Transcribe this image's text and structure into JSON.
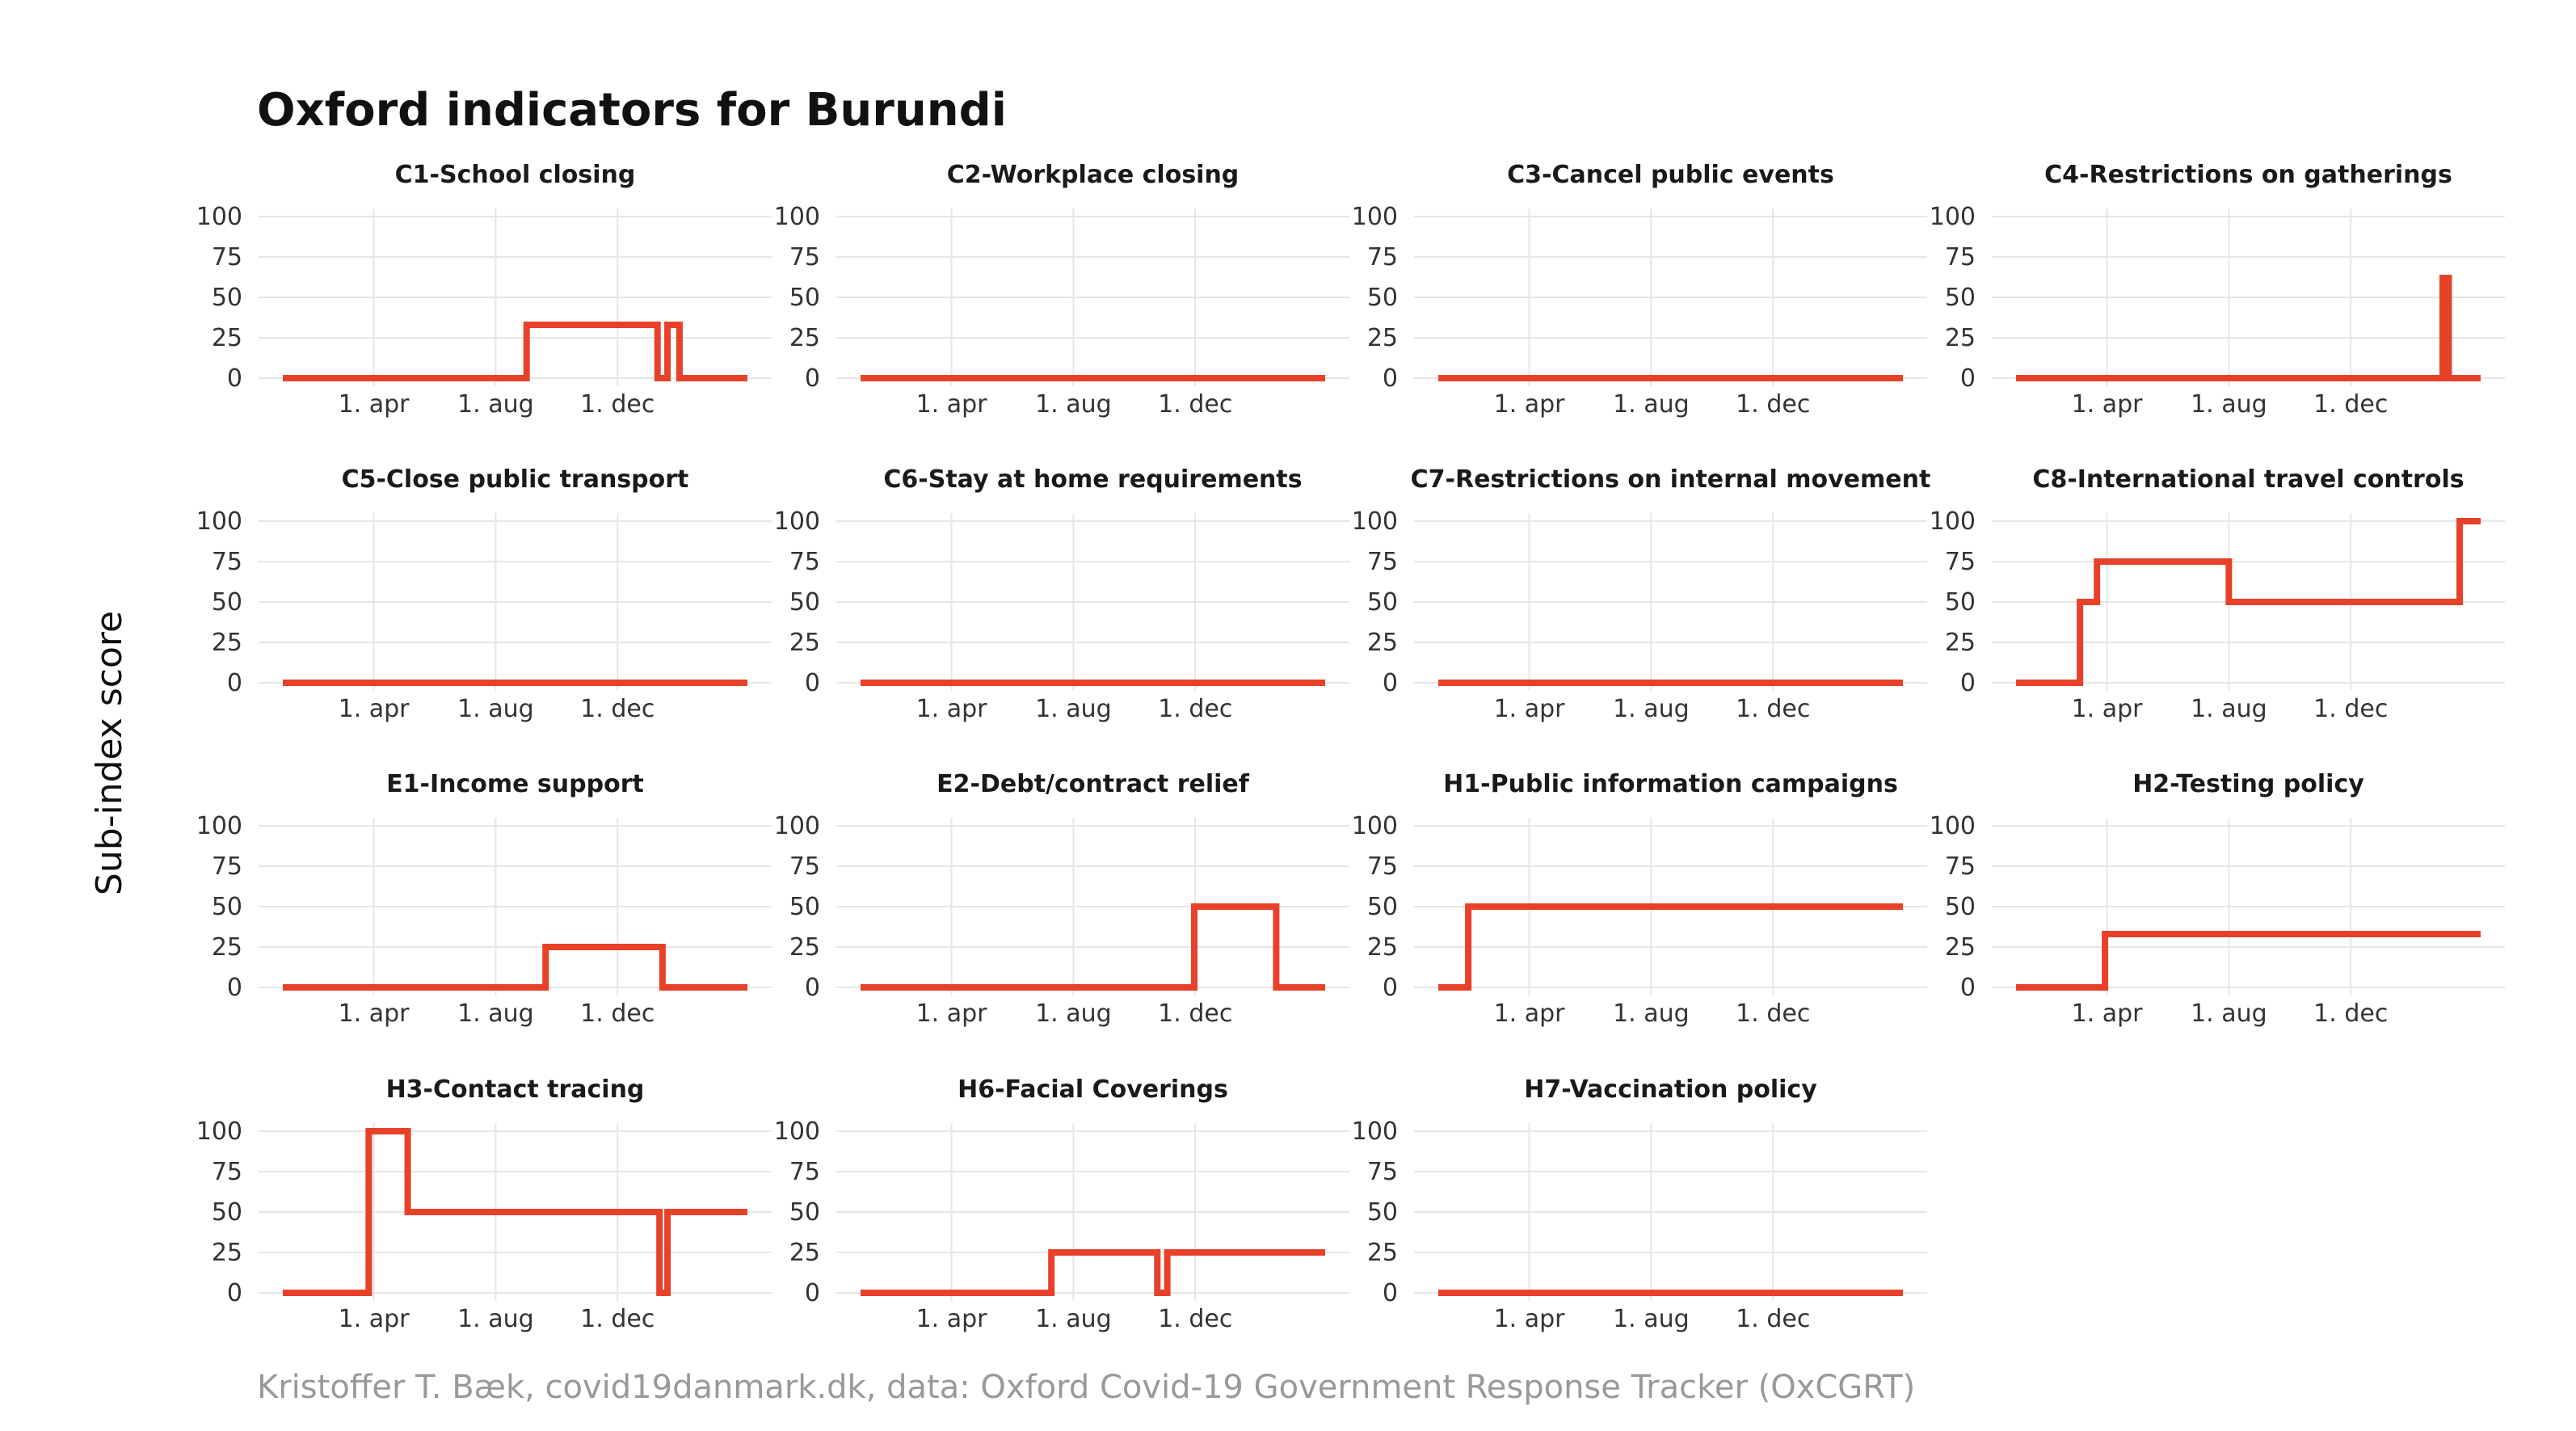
{
  "title": "Oxford indicators for Burundi",
  "ylabel": "Sub-index score",
  "caption": "Kristoffer T. Bæk, covid19danmark.dk, data: Oxford Covid-19 Government Response Tracker (OxCGRT)",
  "colors": {
    "line": "#e8412a",
    "grid": "#e6e6e6",
    "text": "#333333"
  },
  "chart_data": {
    "type": "line",
    "facet": "small-multiples",
    "x_start": "2020-01-01",
    "x_end": "2021-04-10",
    "xticks": [
      {
        "label": "1. apr",
        "date": "2020-04-01"
      },
      {
        "label": "1. aug",
        "date": "2020-08-01"
      },
      {
        "label": "1. dec",
        "date": "2020-12-01"
      }
    ],
    "ylim": [
      0,
      100
    ],
    "yticks": [
      0,
      25,
      50,
      75,
      100
    ],
    "grid": true,
    "legend": "none",
    "panels": [
      {
        "title": "C1-School closing",
        "steps": [
          [
            "2020-01-01",
            0
          ],
          [
            "2020-09-01",
            33
          ],
          [
            "2021-01-10",
            0
          ],
          [
            "2021-01-20",
            33
          ],
          [
            "2021-02-01",
            0
          ],
          [
            "2021-04-10",
            0
          ]
        ]
      },
      {
        "title": "C2-Workplace closing",
        "steps": [
          [
            "2020-01-01",
            0
          ],
          [
            "2021-04-10",
            0
          ]
        ]
      },
      {
        "title": "C3-Cancel public events",
        "steps": [
          [
            "2020-01-01",
            0
          ],
          [
            "2021-04-10",
            0
          ]
        ]
      },
      {
        "title": "C4-Restrictions on gatherings",
        "steps": [
          [
            "2020-01-01",
            0
          ],
          [
            "2021-03-03",
            62
          ],
          [
            "2021-03-09",
            0
          ],
          [
            "2021-04-10",
            0
          ]
        ]
      },
      {
        "title": "C5-Close public transport",
        "steps": [
          [
            "2020-01-01",
            0
          ],
          [
            "2021-04-10",
            0
          ]
        ]
      },
      {
        "title": "C6-Stay at home requirements",
        "steps": [
          [
            "2020-01-01",
            0
          ],
          [
            "2021-04-10",
            0
          ]
        ]
      },
      {
        "title": "C7-Restrictions on internal movement",
        "steps": [
          [
            "2020-01-01",
            0
          ],
          [
            "2021-04-10",
            0
          ]
        ]
      },
      {
        "title": "C8-International travel controls",
        "steps": [
          [
            "2020-01-01",
            0
          ],
          [
            "2020-03-05",
            50
          ],
          [
            "2020-03-22",
            75
          ],
          [
            "2020-08-01",
            50
          ],
          [
            "2021-03-20",
            100
          ],
          [
            "2021-04-10",
            100
          ]
        ]
      },
      {
        "title": "E1-Income support",
        "steps": [
          [
            "2020-01-01",
            0
          ],
          [
            "2020-09-20",
            25
          ],
          [
            "2021-01-15",
            0
          ],
          [
            "2021-04-10",
            0
          ]
        ]
      },
      {
        "title": "E2-Debt/contract relief",
        "steps": [
          [
            "2020-01-01",
            0
          ],
          [
            "2020-11-30",
            50
          ],
          [
            "2021-02-20",
            0
          ],
          [
            "2021-04-10",
            0
          ]
        ]
      },
      {
        "title": "H1-Public information campaigns",
        "steps": [
          [
            "2020-01-01",
            0
          ],
          [
            "2020-01-31",
            50
          ],
          [
            "2021-04-10",
            50
          ]
        ]
      },
      {
        "title": "H2-Testing policy",
        "steps": [
          [
            "2020-01-01",
            0
          ],
          [
            "2020-03-30",
            33
          ],
          [
            "2021-04-10",
            33
          ]
        ]
      },
      {
        "title": "H3-Contact tracing",
        "steps": [
          [
            "2020-01-01",
            0
          ],
          [
            "2020-03-27",
            100
          ],
          [
            "2020-05-05",
            50
          ],
          [
            "2021-01-12",
            0
          ],
          [
            "2021-01-20",
            50
          ],
          [
            "2021-04-10",
            50
          ]
        ]
      },
      {
        "title": "H6-Facial Coverings",
        "steps": [
          [
            "2020-01-01",
            0
          ],
          [
            "2020-07-10",
            25
          ],
          [
            "2020-10-24",
            0
          ],
          [
            "2020-11-03",
            25
          ],
          [
            "2021-04-10",
            25
          ]
        ]
      },
      {
        "title": "H7-Vaccination policy",
        "steps": [
          [
            "2020-01-01",
            0
          ],
          [
            "2021-04-10",
            0
          ]
        ]
      }
    ]
  }
}
